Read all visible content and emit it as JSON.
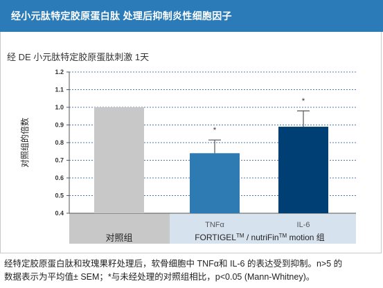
{
  "header": {
    "title": "经小元肽特定胶原蛋白肽 处理后抑制炎性细胞因子"
  },
  "chart_data": {
    "type": "bar",
    "title": "经 DE 小元肽特定胶原蛋肽刺激 1天",
    "ylabel": "对照组的倍数",
    "ylim": [
      0.4,
      1.2
    ],
    "yticks": [
      "0.4",
      "0.5",
      "0.6",
      "0.7",
      "0.8",
      "0.9",
      "1.0",
      "1.1",
      "1.2"
    ],
    "grid": true,
    "categories": [
      "对照组",
      "TNFα",
      "IL-6"
    ],
    "values": [
      1.0,
      0.74,
      0.89
    ],
    "errors": [
      null,
      0.075,
      0.09
    ],
    "significance": [
      "",
      "*",
      "*"
    ],
    "colors": {
      "control": "#c8c8c8",
      "tnf": "#2e7ab3",
      "il6": "#003f73"
    },
    "group_label_prefix": "FORTIGEL",
    "group_label_sup1": "TM",
    "group_label_mid": " / nutriFin",
    "group_label_sup2": "TM",
    "group_label_suffix": " motion 组"
  },
  "caption": {
    "line1": "经特定胶原蛋白肽和玫瑰果籽处理后，软骨细胞中 TNFα和 IL-6 的表达受到抑制。n>5 的",
    "line2": "数据表示为平均值± SEM；*与未经处理的对照组相比，p<0.05 (Mann-Whitney)。"
  }
}
